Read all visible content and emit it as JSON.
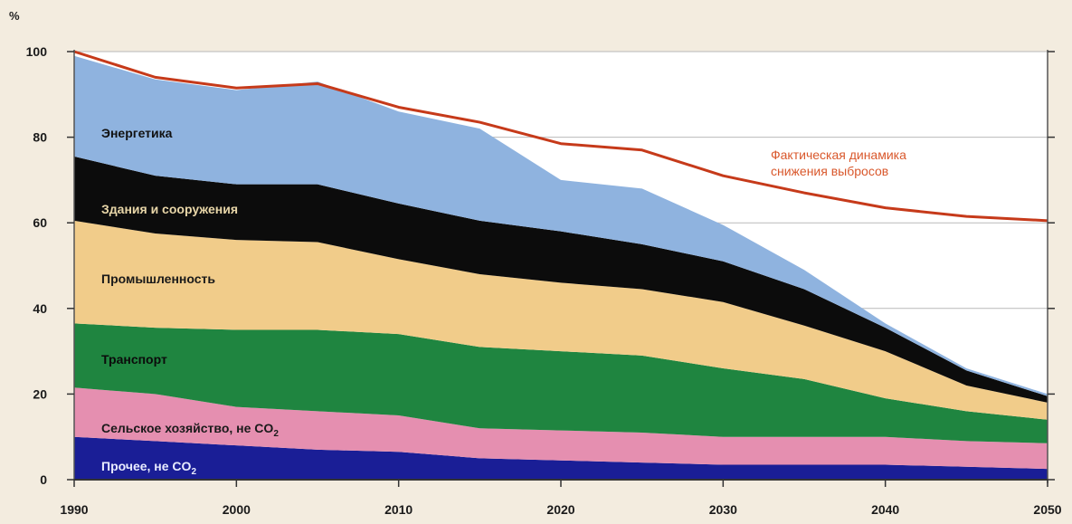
{
  "chart_data": {
    "type": "area",
    "title": "",
    "xlabel": "",
    "ylabel": "%",
    "xlim": [
      1990,
      2050
    ],
    "ylim": [
      0,
      100
    ],
    "grid": true,
    "x_ticks": [
      1990,
      2000,
      2010,
      2020,
      2030,
      2040,
      2050
    ],
    "y_ticks": [
      0,
      20,
      40,
      60,
      80,
      100
    ],
    "x": [
      1990,
      1995,
      2000,
      2005,
      2010,
      2015,
      2020,
      2025,
      2030,
      2035,
      2040,
      2045,
      2050
    ],
    "stacked_series": [
      {
        "name": "Прочее, не CO₂",
        "color": "#1a1e96",
        "values": [
          10,
          9,
          8,
          7,
          6.5,
          5,
          4.5,
          4,
          3.5,
          3.5,
          3.5,
          3,
          2.5
        ]
      },
      {
        "name": "Сельское хозяйство, не CO₂",
        "color": "#e58fb0",
        "values": [
          11.5,
          11,
          9,
          9,
          8.5,
          7,
          7,
          7,
          6.5,
          6.5,
          6.5,
          6,
          6
        ]
      },
      {
        "name": "Транспорт",
        "color": "#1f8540",
        "values": [
          15,
          15.5,
          18,
          19,
          19,
          19,
          18.5,
          18,
          16,
          13.5,
          9,
          7,
          5.5
        ]
      },
      {
        "name": "Промышленность",
        "color": "#f1cc8a",
        "values": [
          24,
          22,
          21,
          20.5,
          17.5,
          17,
          16,
          15.5,
          15.5,
          12.5,
          11,
          6,
          4
        ]
      },
      {
        "name": "Здания и сооружения",
        "color": "#0c0c0c",
        "values": [
          15,
          13.5,
          13,
          13.5,
          13,
          12.5,
          12,
          10.5,
          9.5,
          8.5,
          5.5,
          3.5,
          1.5
        ]
      },
      {
        "name": "Энергетика",
        "color": "#8fb3df",
        "values": [
          23.5,
          22.5,
          22,
          24,
          21.5,
          21.5,
          12,
          13,
          8.5,
          4.5,
          1,
          0.5,
          0.5
        ]
      }
    ],
    "line_series": {
      "name": "Фактическая динамика снижения выбросов",
      "color": "#c63a1a",
      "values": [
        100,
        94,
        91.5,
        92.5,
        87,
        83.5,
        78.5,
        77,
        71,
        67,
        63.5,
        61.5,
        60.5
      ]
    },
    "labels": {
      "energy": "Энергетика",
      "buildings": "Здания и сооружения",
      "industry": "Промышленность",
      "transport": "Транспорт",
      "agriculture": "Сельское хозяйство, не CO",
      "agriculture_sub": "2",
      "other": "Прочее, не CO",
      "other_sub": "2",
      "trend_line1": "Фактическая динамика",
      "trend_line2": "снижения выбросов"
    }
  }
}
